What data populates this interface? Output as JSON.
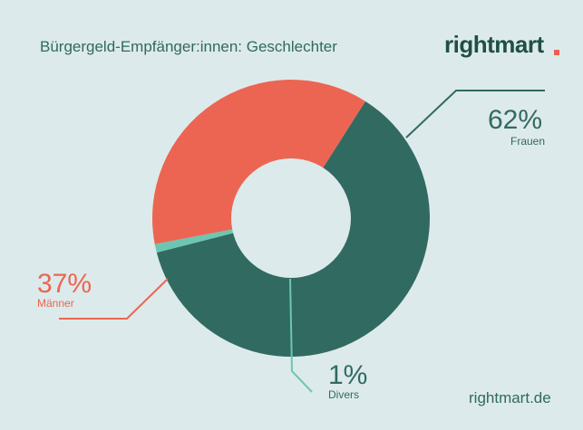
{
  "header": {
    "title": "Bürgergeld-Empfänger:innen: Geschlechter",
    "brand": "rightmart"
  },
  "footer": {
    "site": "rightmart.de"
  },
  "chart_data": {
    "type": "pie",
    "title": "Bürgergeld-Empfänger:innen: Geschlechter",
    "slices": [
      {
        "label": "Frauen",
        "value": 62,
        "display": "62%",
        "color": "#316a61"
      },
      {
        "label": "Divers",
        "value": 1,
        "display": "1%",
        "color": "#6dc6b3"
      },
      {
        "label": "Männer",
        "value": 37,
        "display": "37%",
        "color": "#ec6552"
      }
    ],
    "donut": true
  },
  "colors": {
    "background": "#ddeaeb",
    "brand_accent": "#e9604e",
    "text": "#2f6a60"
  }
}
